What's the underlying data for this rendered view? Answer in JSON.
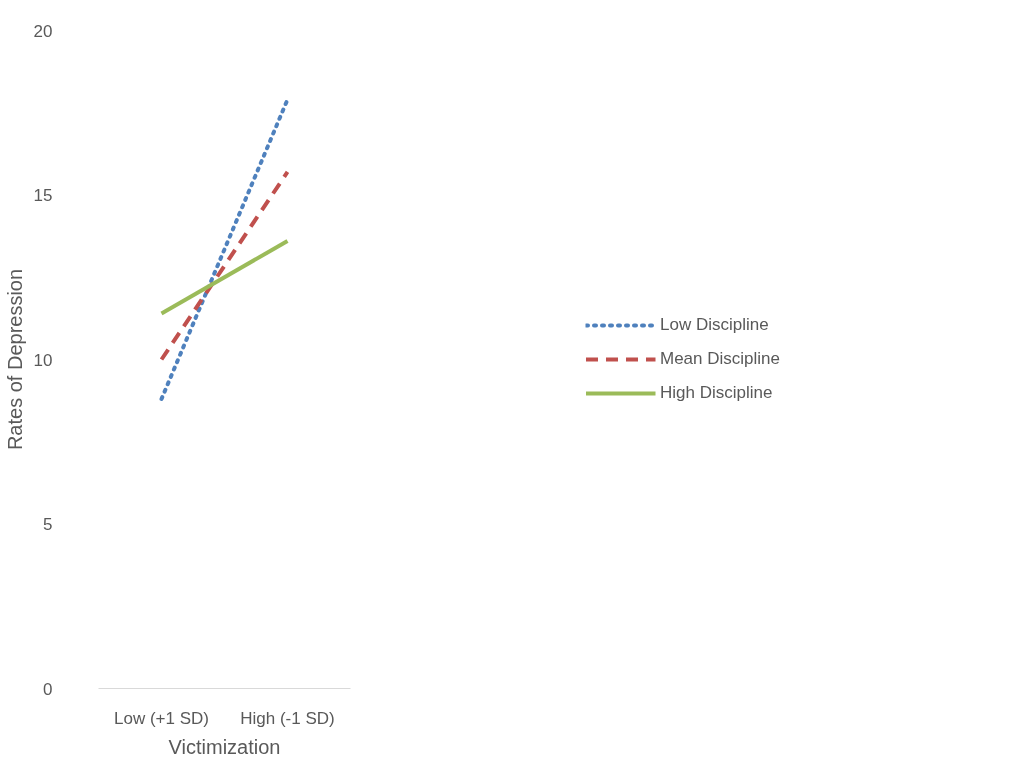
{
  "chart_data": {
    "type": "line",
    "xlabel": "Victimization",
    "ylabel": "Rates of Depression",
    "categories": [
      "Low (+1 SD)",
      "High (-1 SD)"
    ],
    "ylim": [
      0,
      20
    ],
    "yticks": [
      0,
      5,
      10,
      15,
      20
    ],
    "grid": false,
    "legend": "right",
    "marker": "none",
    "series": [
      {
        "name": "Low Discipline",
        "color": "#4f81bd",
        "line_style": "dotted",
        "values": [
          8.8,
          17.9
        ]
      },
      {
        "name": "Mean Discipline",
        "color": "#c0504d",
        "line_style": "dashed",
        "values": [
          10.0,
          15.7
        ]
      },
      {
        "name": "High Discipline",
        "color": "#9bbb59",
        "line_style": "solid",
        "values": [
          11.4,
          13.6
        ]
      }
    ]
  }
}
